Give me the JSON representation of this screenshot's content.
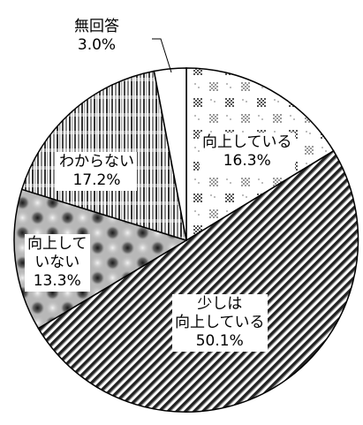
{
  "chart_data": {
    "type": "pie",
    "title": "",
    "start_angle_deg": 0,
    "direction": "clockwise",
    "slices": [
      {
        "label_lines": [
          "向上している"
        ],
        "value": 16.3,
        "value_label": "16.3%",
        "pattern": "dots"
      },
      {
        "label_lines": [
          "少しは",
          "向上している"
        ],
        "value": 50.1,
        "value_label": "50.1%",
        "pattern": "diagonal"
      },
      {
        "label_lines": [
          "向上して",
          "いない"
        ],
        "value": 13.3,
        "value_label": "13.3%",
        "pattern": "blobs"
      },
      {
        "label_lines": [
          "わからない"
        ],
        "value": 17.2,
        "value_label": "17.2%",
        "pattern": "vertical"
      },
      {
        "label_lines": [
          "無回答"
        ],
        "value": 3.0,
        "value_label": "3.0%",
        "pattern": "none"
      }
    ]
  }
}
